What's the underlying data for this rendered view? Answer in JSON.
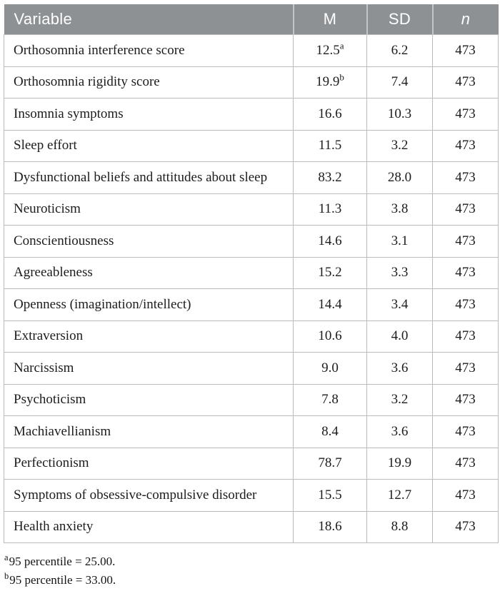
{
  "table": {
    "columns": [
      {
        "label": "Variable"
      },
      {
        "label": "M"
      },
      {
        "label": "SD"
      },
      {
        "label": "n"
      }
    ],
    "rows": [
      {
        "variable": "Orthosomnia interference score",
        "m": "12.5",
        "m_sup": "a",
        "sd": "6.2",
        "n": "473"
      },
      {
        "variable": "Orthosomnia rigidity score",
        "m": "19.9",
        "m_sup": "b",
        "sd": "7.4",
        "n": "473"
      },
      {
        "variable": "Insomnia symptoms",
        "m": "16.6",
        "sd": "10.3",
        "n": "473"
      },
      {
        "variable": "Sleep effort",
        "m": "11.5",
        "sd": "3.2",
        "n": "473"
      },
      {
        "variable": "Dysfunctional beliefs and attitudes about sleep",
        "m": "83.2",
        "sd": "28.0",
        "n": "473"
      },
      {
        "variable": "Neuroticism",
        "m": "11.3",
        "sd": "3.8",
        "n": "473"
      },
      {
        "variable": "Conscientiousness",
        "m": "14.6",
        "sd": "3.1",
        "n": "473"
      },
      {
        "variable": "Agreeableness",
        "m": "15.2",
        "sd": "3.3",
        "n": "473"
      },
      {
        "variable": "Openness (imagination/intellect)",
        "m": "14.4",
        "sd": "3.4",
        "n": "473"
      },
      {
        "variable": "Extraversion",
        "m": "10.6",
        "sd": "4.0",
        "n": "473"
      },
      {
        "variable": "Narcissism",
        "m": "9.0",
        "sd": "3.6",
        "n": "473"
      },
      {
        "variable": "Psychoticism",
        "m": "7.8",
        "sd": "3.2",
        "n": "473"
      },
      {
        "variable": "Machiavellianism",
        "m": "8.4",
        "sd": "3.6",
        "n": "473"
      },
      {
        "variable": "Perfectionism",
        "m": "78.7",
        "sd": "19.9",
        "n": "473"
      },
      {
        "variable": "Symptoms of obsessive-compulsive disorder",
        "m": "15.5",
        "sd": "12.7",
        "n": "473"
      },
      {
        "variable": "Health anxiety",
        "m": "18.6",
        "sd": "8.8",
        "n": "473"
      }
    ],
    "footnotes": [
      {
        "sup": "a",
        "text": "95 percentile = 25.00."
      },
      {
        "sup": "b",
        "text": "95 percentile = 33.00."
      }
    ]
  },
  "colors": {
    "header_bg": "#8d9194",
    "header_text": "#ffffff",
    "border": "#babdbf",
    "body_text": "#1c1c1c"
  }
}
